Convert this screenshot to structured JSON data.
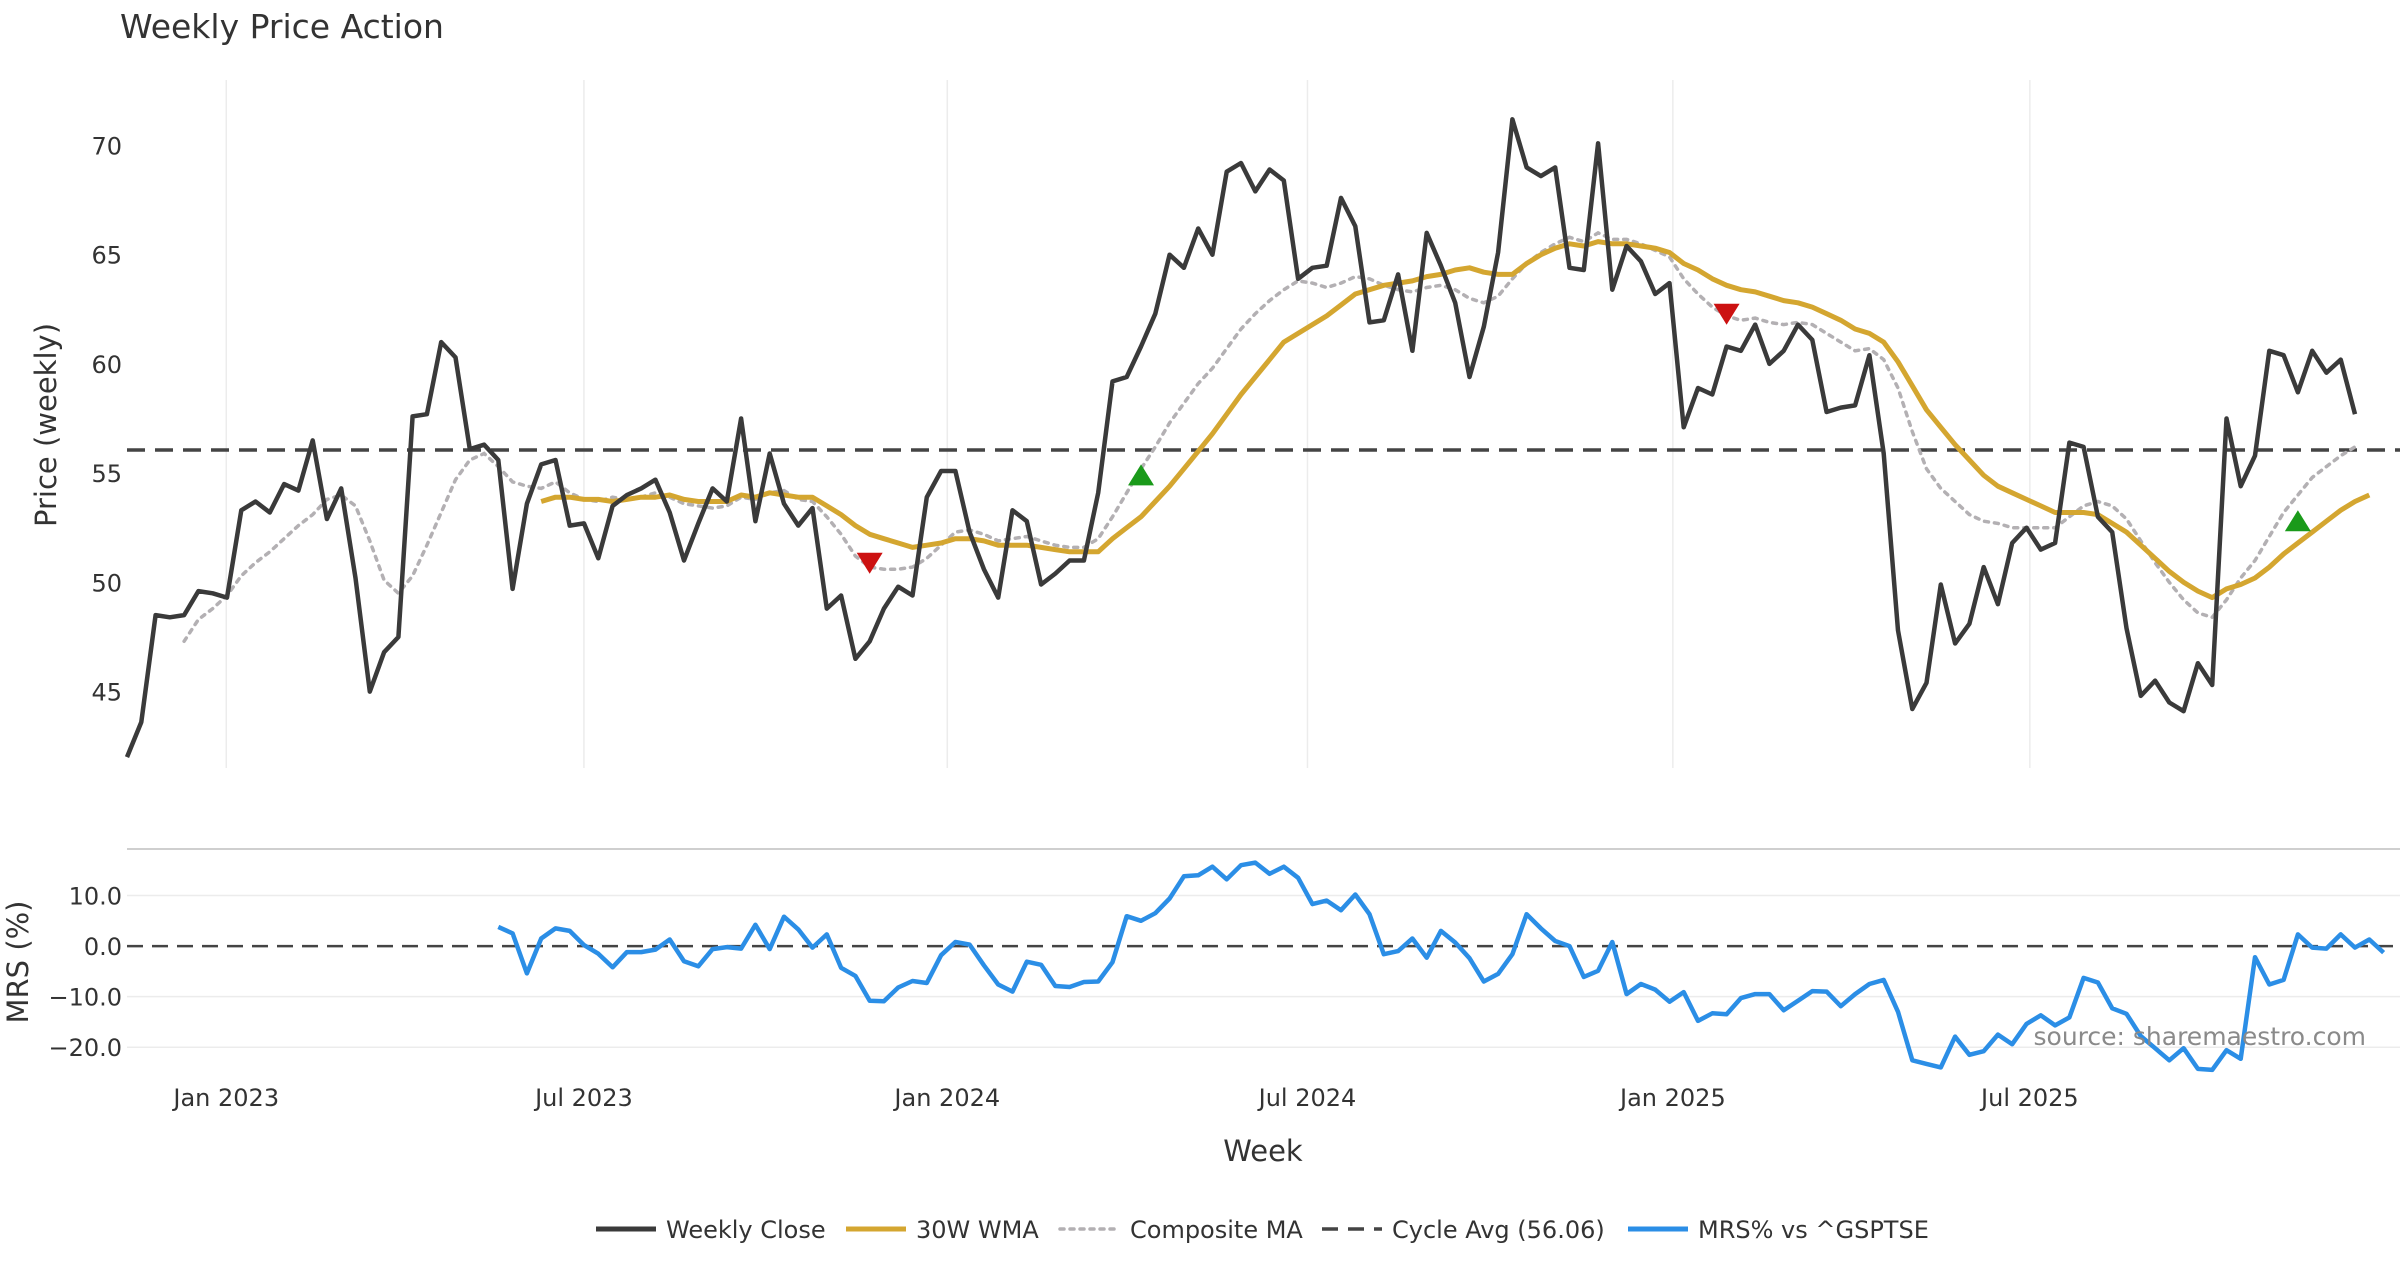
{
  "chart_data": {
    "type": "line",
    "title": "Weekly Price Action",
    "xlabel": "Week",
    "source": "source: sharemaestro.com",
    "x_ticks": [
      "Jan 2023",
      "Jul 2023",
      "Jan 2024",
      "Jul 2024",
      "Jan 2025",
      "Jul 2025"
    ],
    "price_panel": {
      "ylabel": "Price (weekly)",
      "ylim": [
        41.5,
        73
      ],
      "yticks": [
        45,
        50,
        55,
        60,
        65,
        70
      ],
      "cycle_avg": 56.06,
      "weekly_close": [
        42.0,
        43.6,
        48.5,
        48.4,
        48.5,
        49.6,
        49.5,
        49.3,
        53.3,
        53.7,
        53.2,
        54.5,
        54.2,
        56.5,
        52.9,
        54.3,
        50.2,
        45.0,
        46.8,
        47.5,
        57.6,
        57.7,
        61.0,
        60.3,
        56.1,
        56.3,
        55.6,
        49.7,
        53.6,
        55.4,
        55.6,
        52.6,
        52.7,
        51.1,
        53.5,
        54.0,
        54.3,
        54.7,
        53.2,
        51.0,
        52.7,
        54.3,
        53.7,
        57.5,
        52.8,
        55.9,
        53.6,
        52.6,
        53.4,
        48.8,
        49.4,
        46.5,
        47.3,
        48.8,
        49.8,
        49.4,
        53.9,
        55.1,
        55.1,
        52.3,
        50.6,
        49.3,
        53.3,
        52.8,
        49.9,
        50.4,
        51.0,
        51.0,
        54.1,
        59.2,
        59.4,
        60.8,
        62.3,
        65.0,
        64.4,
        66.2,
        65.0,
        68.8,
        69.2,
        67.9,
        68.9,
        68.4,
        63.9,
        64.4,
        64.5,
        67.6,
        66.3,
        61.9,
        62.0,
        64.1,
        60.6,
        66.0,
        64.5,
        62.8,
        59.4,
        61.7,
        65.1,
        71.2,
        69.0,
        68.6,
        69.0,
        64.4,
        64.3,
        70.1,
        63.4,
        65.4,
        64.7,
        63.2,
        63.7,
        57.1,
        58.9,
        58.6,
        60.8,
        60.6,
        61.8,
        60.0,
        60.6,
        61.8,
        61.1,
        57.8,
        58.0,
        58.1,
        60.4,
        55.9,
        47.8,
        44.2,
        45.4,
        49.9,
        47.2,
        48.1,
        50.7,
        49.0,
        51.8,
        52.5,
        51.5,
        51.8,
        56.4,
        56.2,
        53.0,
        52.3,
        47.9,
        44.8,
        45.5,
        44.5,
        44.1,
        46.3,
        45.3,
        57.5,
        54.4,
        55.8,
        60.6,
        60.4,
        58.7,
        60.6,
        59.6,
        60.2,
        57.7
      ],
      "wma_30w": [
        null,
        null,
        null,
        null,
        null,
        null,
        null,
        null,
        null,
        null,
        null,
        null,
        null,
        null,
        null,
        null,
        null,
        null,
        null,
        null,
        null,
        null,
        null,
        null,
        null,
        null,
        null,
        null,
        null,
        53.7,
        53.9,
        53.9,
        53.8,
        53.8,
        53.7,
        53.8,
        53.9,
        53.9,
        54.0,
        53.8,
        53.7,
        53.7,
        53.7,
        54.0,
        53.9,
        54.1,
        54.0,
        53.9,
        53.9,
        53.5,
        53.1,
        52.6,
        52.2,
        52.0,
        51.8,
        51.6,
        51.7,
        51.8,
        52.0,
        52.0,
        51.9,
        51.7,
        51.7,
        51.7,
        51.6,
        51.5,
        51.4,
        51.4,
        51.4,
        52.0,
        52.5,
        53.0,
        53.7,
        54.4,
        55.2,
        56.0,
        56.8,
        57.7,
        58.6,
        59.4,
        60.2,
        61.0,
        61.4,
        61.8,
        62.2,
        62.7,
        63.2,
        63.4,
        63.6,
        63.7,
        63.8,
        64.0,
        64.1,
        64.3,
        64.4,
        64.2,
        64.1,
        64.1,
        64.6,
        65.0,
        65.3,
        65.5,
        65.4,
        65.6,
        65.5,
        65.5,
        65.4,
        65.3,
        65.1,
        64.6,
        64.3,
        63.9,
        63.6,
        63.4,
        63.3,
        63.1,
        62.9,
        62.8,
        62.6,
        62.3,
        62.0,
        61.6,
        61.4,
        61.0,
        60.1,
        59.0,
        57.9,
        57.1,
        56.3,
        55.6,
        54.9,
        54.4,
        54.1,
        53.8,
        53.5,
        53.2,
        53.2,
        53.2,
        53.1,
        52.7,
        52.3,
        51.7,
        51.1,
        50.5,
        50.0,
        49.6,
        49.3,
        49.7,
        49.9,
        50.2,
        50.7,
        51.3,
        51.8,
        52.3,
        52.8,
        53.3,
        53.7,
        54.0
      ],
      "composite_ma": [
        null,
        null,
        null,
        null,
        47.3,
        48.3,
        48.8,
        49.4,
        50.3,
        50.9,
        51.4,
        52.0,
        52.6,
        53.1,
        53.8,
        54.0,
        53.5,
        51.9,
        50.1,
        49.5,
        50.3,
        51.7,
        53.2,
        54.7,
        55.6,
        55.9,
        55.3,
        54.6,
        54.4,
        54.3,
        54.6,
        54.1,
        53.8,
        53.7,
        53.9,
        53.8,
        53.9,
        54.1,
        53.9,
        53.6,
        53.5,
        53.4,
        53.5,
        53.9,
        53.8,
        54.1,
        54.2,
        53.8,
        53.7,
        53.0,
        52.2,
        51.2,
        50.7,
        50.6,
        50.6,
        50.7,
        51.1,
        51.7,
        52.3,
        52.4,
        52.2,
        51.9,
        52.0,
        52.1,
        51.9,
        51.7,
        51.6,
        51.6,
        52.0,
        53.0,
        54.1,
        55.2,
        56.2,
        57.3,
        58.2,
        59.1,
        59.8,
        60.7,
        61.6,
        62.3,
        62.9,
        63.4,
        63.8,
        63.7,
        63.5,
        63.7,
        64.0,
        63.9,
        63.6,
        63.4,
        63.3,
        63.5,
        63.6,
        63.4,
        63.0,
        62.8,
        63.1,
        63.9,
        64.6,
        65.1,
        65.5,
        65.8,
        65.6,
        66.0,
        65.7,
        65.7,
        65.5,
        65.2,
        64.9,
        63.9,
        63.2,
        62.6,
        62.2,
        62.0,
        62.1,
        61.9,
        61.8,
        61.9,
        61.8,
        61.4,
        61.0,
        60.6,
        60.7,
        60.2,
        58.9,
        56.9,
        55.2,
        54.3,
        53.7,
        53.1,
        52.8,
        52.7,
        52.5,
        52.5,
        52.5,
        52.5,
        53.0,
        53.5,
        53.7,
        53.5,
        52.9,
        51.9,
        50.9,
        50.0,
        49.2,
        48.6,
        48.4,
        49.2,
        50.2,
        51.0,
        52.1,
        53.2,
        54.0,
        54.8,
        55.3,
        55.8,
        56.2
      ],
      "signals": [
        {
          "week": 52,
          "price": 50.9,
          "dir": "down"
        },
        {
          "week": 71,
          "price": 54.9,
          "dir": "up"
        },
        {
          "week": 112,
          "price": 62.3,
          "dir": "down"
        },
        {
          "week": 152,
          "price": 52.8,
          "dir": "up"
        }
      ]
    },
    "mrs_panel": {
      "ylabel": "MRS (%)",
      "ylim": [
        -25.5,
        19
      ],
      "yticks": [
        10,
        0,
        -10,
        -20
      ],
      "ytick_labels": [
        "10.0",
        "0.0",
        "−10.0",
        "−20.0"
      ],
      "series_name": "MRS% vs ^GSPTSE",
      "start_week": 26,
      "values": [
        3.8,
        2.5,
        -5.4,
        1.5,
        3.5,
        3.0,
        0.2,
        -1.5,
        -4.2,
        -1.2,
        -1.2,
        -0.7,
        1.3,
        -3.0,
        -4.0,
        -0.6,
        -0.2,
        -0.5,
        4.2,
        -0.6,
        5.8,
        3.3,
        -0.3,
        2.3,
        -4.3,
        -5.9,
        -10.8,
        -10.9,
        -8.2,
        -6.9,
        -7.3,
        -1.8,
        0.8,
        0.3,
        -3.8,
        -7.6,
        -9.0,
        -3.1,
        -3.7,
        -7.9,
        -8.1,
        -7.1,
        -7.0,
        -3.2,
        5.9,
        5.0,
        6.5,
        9.4,
        13.8,
        14.0,
        15.7,
        13.2,
        16.0,
        16.5,
        14.3,
        15.7,
        13.5,
        8.3,
        9.0,
        7.1,
        10.2,
        6.3,
        -1.6,
        -1.0,
        1.5,
        -2.3,
        3.0,
        0.7,
        -2.4,
        -7.0,
        -5.5,
        -1.6,
        6.3,
        3.5,
        1.0,
        0.0,
        -6.1,
        -4.9,
        0.8,
        -9.5,
        -7.5,
        -8.6,
        -11.0,
        -9.1,
        -14.8,
        -13.3,
        -13.5,
        -10.3,
        -9.5,
        -9.5,
        -12.7,
        -10.8,
        -8.9,
        -9.0,
        -11.9,
        -9.5,
        -7.5,
        -6.7,
        -13.0,
        -22.6,
        -23.3,
        -24.0,
        -17.9,
        -21.5,
        -20.8,
        -17.5,
        -19.4,
        -15.4,
        -13.7,
        -15.7,
        -14.1,
        -6.3,
        -7.2,
        -12.3,
        -13.4,
        -17.8,
        -20.2,
        -22.6,
        -20.2,
        -24.3,
        -24.5,
        -20.6,
        -22.3,
        -2.2,
        -7.6,
        -6.7,
        2.3,
        -0.3,
        -0.5,
        2.3,
        -0.3,
        1.3,
        -1.3
      ]
    },
    "legend": [
      {
        "label": "Weekly Close",
        "color": "#3a3a3a",
        "style": "solid"
      },
      {
        "label": "30W WMA",
        "color": "#d4a630",
        "style": "solid"
      },
      {
        "label": "Composite MA",
        "color": "#b3b0b3",
        "style": "dotted"
      },
      {
        "label": "Cycle Avg (56.06)",
        "color": "#444444",
        "style": "dashed"
      },
      {
        "label": "MRS% vs ^GSPTSE",
        "color": "#2b8ee6",
        "style": "solid"
      }
    ],
    "colors": {
      "close": "#3a3a3a",
      "wma": "#d4a630",
      "composite": "#b3b0b3",
      "cycle": "#444444",
      "mrs": "#2b8ee6",
      "signal_up": "#1a9a1a",
      "signal_down": "#cc1111"
    }
  }
}
